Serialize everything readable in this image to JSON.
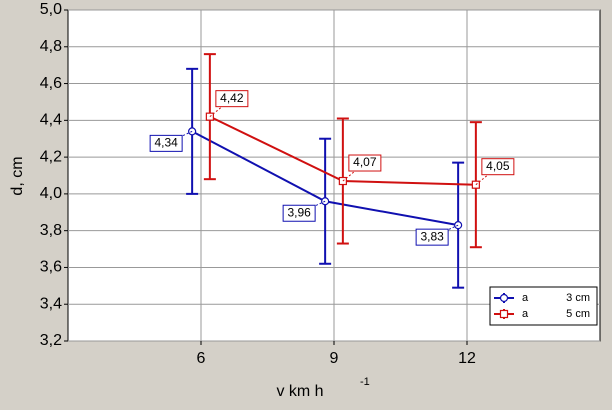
{
  "chart_data": {
    "type": "line",
    "xlabel": "v km h",
    "xlabel_superscript": "-1",
    "ylabel": "d, cm",
    "xlim": [
      3,
      15
    ],
    "xticks": [
      6,
      9,
      12
    ],
    "ylim": [
      3.2,
      5.0
    ],
    "yticks": [
      {
        "value": 3.2,
        "label": "3,2"
      },
      {
        "value": 3.4,
        "label": "3,4"
      },
      {
        "value": 3.6,
        "label": "3,6"
      },
      {
        "value": 3.8,
        "label": "3,8"
      },
      {
        "value": 4.0,
        "label": "4,0"
      },
      {
        "value": 4.2,
        "label": "4,2"
      },
      {
        "value": 4.4,
        "label": "4,4"
      },
      {
        "value": 4.6,
        "label": "4,6"
      },
      {
        "value": 4.8,
        "label": "4,8"
      },
      {
        "value": 5.0,
        "label": "5,0"
      }
    ],
    "grid": true,
    "legend": "lower right",
    "series": [
      {
        "name": "3 cm",
        "label_prefix": "a",
        "color": "#1010b0",
        "marker": "circle",
        "x": [
          5.8,
          8.8,
          11.8
        ],
        "values": [
          4.34,
          3.96,
          3.83
        ],
        "value_labels": [
          "4,34",
          "3,96",
          "3,83"
        ],
        "errors": [
          0.34,
          0.34,
          0.34
        ]
      },
      {
        "name": "5 cm",
        "label_prefix": "a",
        "color": "#d01010",
        "marker": "square",
        "x": [
          6.2,
          9.2,
          12.2
        ],
        "values": [
          4.42,
          4.07,
          4.05
        ],
        "value_labels": [
          "4,42",
          "4,07",
          "4,05"
        ],
        "errors": [
          0.34,
          0.34,
          0.34
        ]
      }
    ]
  }
}
